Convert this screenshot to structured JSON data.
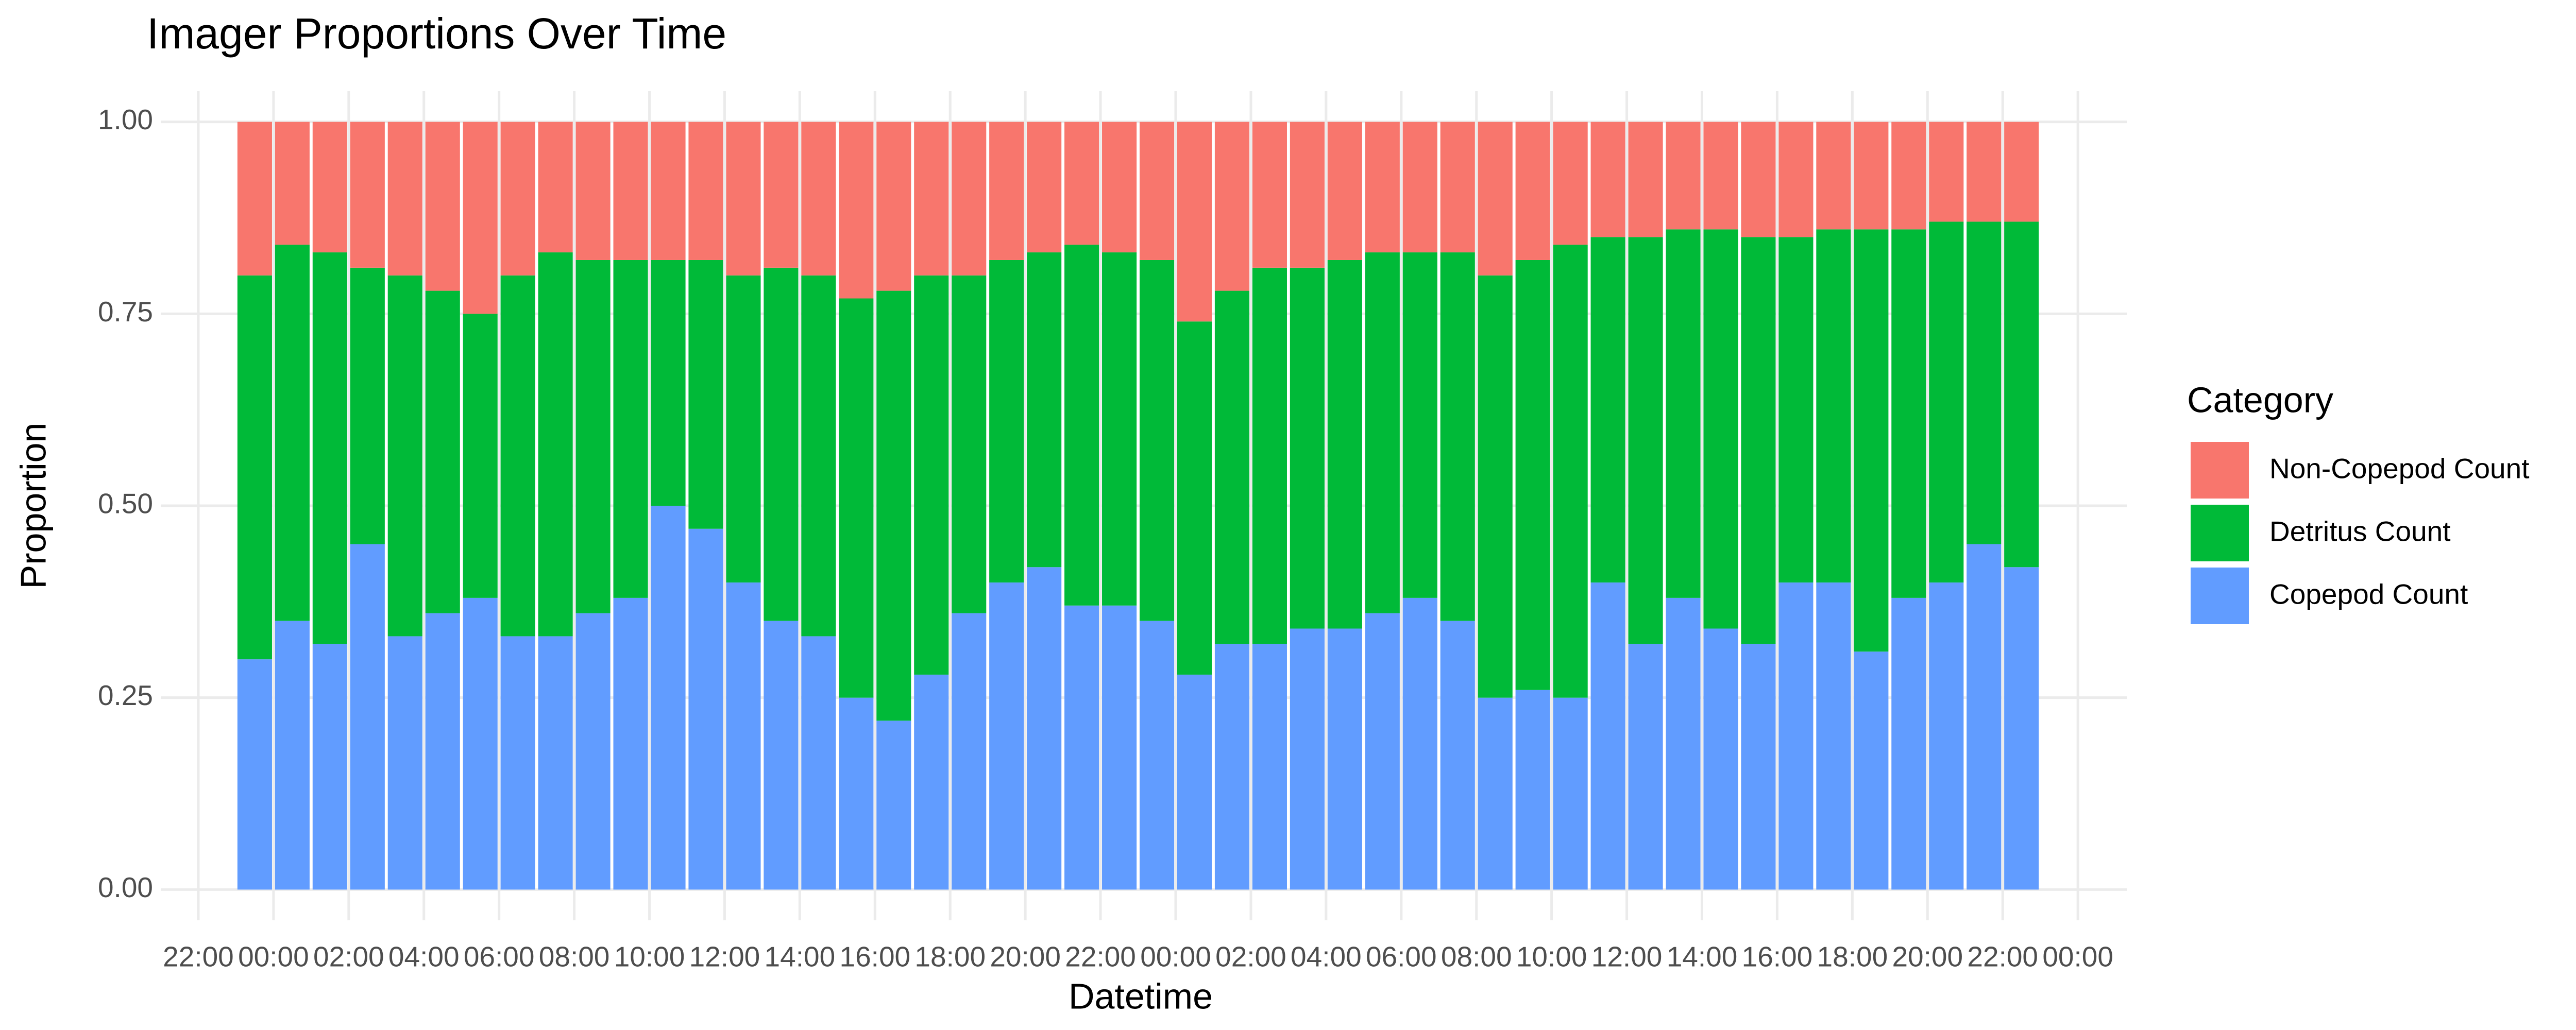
{
  "chart_data": {
    "type": "stacked_bar",
    "title": "Imager Proportions Over Time",
    "x_label": "Datetime",
    "y_label": "Proportion",
    "legend_title": "Category",
    "legend_position": "right",
    "grid": true,
    "x": [
      -0.5,
      0.5,
      1.5,
      2.5,
      3.5,
      4.5,
      5.5,
      6.5,
      7.5,
      8.5,
      9.5,
      10.5,
      11.5,
      12.5,
      13.5,
      14.5,
      15.5,
      16.5,
      17.5,
      18.5,
      19.5,
      20.5,
      21.5,
      22.5,
      23.5,
      24.5,
      25.5,
      26.5,
      27.5,
      28.5,
      29.5,
      30.5,
      31.5,
      32.5,
      33.5,
      34.5,
      35.5,
      36.5,
      37.5,
      38.5,
      39.5,
      40.5,
      41.5,
      42.5,
      43.5,
      44.5,
      45.5,
      46.5
    ],
    "series": [
      {
        "name": "Non-Copepod Count",
        "color": "#f8766d",
        "values": [
          0.2,
          0.16,
          0.17,
          0.19,
          0.2,
          0.22,
          0.25,
          0.2,
          0.17,
          0.18,
          0.18,
          0.18,
          0.18,
          0.2,
          0.19,
          0.2,
          0.23,
          0.22,
          0.2,
          0.2,
          0.18,
          0.17,
          0.16,
          0.17,
          0.18,
          0.26,
          0.22,
          0.19,
          0.19,
          0.18,
          0.17,
          0.17,
          0.17,
          0.2,
          0.18,
          0.16,
          0.15,
          0.15,
          0.14,
          0.14,
          0.15,
          0.15,
          0.14,
          0.14,
          0.14,
          0.13,
          0.13,
          0.13
        ]
      },
      {
        "name": "Detritus Count",
        "color": "#00ba38",
        "values": [
          0.5,
          0.49,
          0.51,
          0.36,
          0.47,
          0.42,
          0.37,
          0.47,
          0.5,
          0.46,
          0.44,
          0.32,
          0.35,
          0.4,
          0.46,
          0.47,
          0.52,
          0.56,
          0.52,
          0.44,
          0.42,
          0.41,
          0.47,
          0.46,
          0.47,
          0.46,
          0.46,
          0.49,
          0.47,
          0.48,
          0.47,
          0.45,
          0.48,
          0.55,
          0.56,
          0.59,
          0.45,
          0.53,
          0.48,
          0.52,
          0.53,
          0.45,
          0.46,
          0.55,
          0.48,
          0.47,
          0.42,
          0.45
        ]
      },
      {
        "name": "Copepod Count",
        "color": "#619cff",
        "values": [
          0.3,
          0.35,
          0.32,
          0.45,
          0.33,
          0.36,
          0.38,
          0.33,
          0.33,
          0.36,
          0.38,
          0.5,
          0.47,
          0.4,
          0.35,
          0.33,
          0.25,
          0.22,
          0.28,
          0.36,
          0.4,
          0.42,
          0.37,
          0.37,
          0.35,
          0.28,
          0.32,
          0.32,
          0.34,
          0.34,
          0.36,
          0.38,
          0.35,
          0.25,
          0.26,
          0.25,
          0.4,
          0.32,
          0.38,
          0.34,
          0.32,
          0.4,
          0.4,
          0.31,
          0.38,
          0.4,
          0.45,
          0.42
        ]
      }
    ],
    "xlim": [
      -3,
      49.3
    ],
    "xticks": [
      {
        "value": -2,
        "label": "22:00"
      },
      {
        "value": 0,
        "label": "00:00"
      },
      {
        "value": 2,
        "label": "02:00"
      },
      {
        "value": 4,
        "label": "04:00"
      },
      {
        "value": 6,
        "label": "06:00"
      },
      {
        "value": 8,
        "label": "08:00"
      },
      {
        "value": 10,
        "label": "10:00"
      },
      {
        "value": 12,
        "label": "12:00"
      },
      {
        "value": 14,
        "label": "14:00"
      },
      {
        "value": 16,
        "label": "16:00"
      },
      {
        "value": 18,
        "label": "18:00"
      },
      {
        "value": 20,
        "label": "20:00"
      },
      {
        "value": 22,
        "label": "22:00"
      },
      {
        "value": 24,
        "label": "00:00"
      },
      {
        "value": 26,
        "label": "02:00"
      },
      {
        "value": 28,
        "label": "04:00"
      },
      {
        "value": 30,
        "label": "06:00"
      },
      {
        "value": 32,
        "label": "08:00"
      },
      {
        "value": 34,
        "label": "10:00"
      },
      {
        "value": 36,
        "label": "12:00"
      },
      {
        "value": 38,
        "label": "14:00"
      },
      {
        "value": 40,
        "label": "16:00"
      },
      {
        "value": 42,
        "label": "18:00"
      },
      {
        "value": 44,
        "label": "20:00"
      },
      {
        "value": 46,
        "label": "22:00"
      },
      {
        "value": 48,
        "label": "00:00"
      }
    ],
    "ylim": [
      -0.04,
      1.04
    ],
    "yticks": [
      {
        "value": 0,
        "label": "0.00"
      },
      {
        "value": 0.25,
        "label": "0.25"
      },
      {
        "value": 0.5,
        "label": "0.50"
      },
      {
        "value": 0.75,
        "label": "0.75"
      },
      {
        "value": 1,
        "label": "1.00"
      }
    ]
  }
}
